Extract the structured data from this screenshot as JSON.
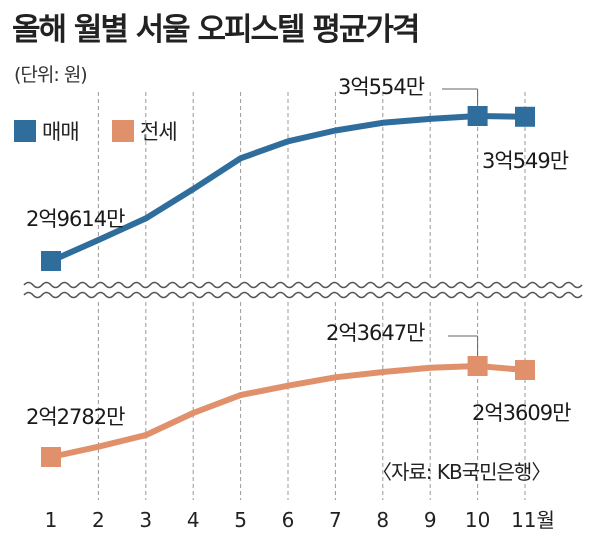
{
  "title": "올해 월별 서울 오피스텔 평균가격",
  "unit_note": "(단위: 원)",
  "source": "〈자료: KB국민은행〉",
  "chart_data": [
    {
      "type": "line",
      "x": [
        1,
        2,
        3,
        4,
        5,
        6,
        7,
        8,
        9,
        10,
        11
      ],
      "tick_labels": [
        "1",
        "2",
        "3",
        "4",
        "5",
        "6",
        "7",
        "8",
        "9",
        "10",
        "11월"
      ],
      "series": [
        {
          "name": "매매",
          "color": "#2f6e9c",
          "values": [
            29614,
            29750,
            29890,
            30080,
            30280,
            30390,
            30460,
            30510,
            30535,
            30554,
            30549
          ],
          "labels": [
            {
              "index": 0,
              "text": "2억9614만"
            },
            {
              "index": 9,
              "text": "3억554만"
            },
            {
              "index": 10,
              "text": "3억549만"
            }
          ]
        },
        {
          "name": "전세",
          "color": "#e0906a",
          "values": [
            22782,
            22880,
            22990,
            23200,
            23370,
            23460,
            23540,
            23590,
            23630,
            23647,
            23609
          ],
          "labels": [
            {
              "index": 0,
              "text": "2억2782만"
            },
            {
              "index": 9,
              "text": "2억3647만"
            },
            {
              "index": 10,
              "text": "2억3609만"
            }
          ]
        }
      ],
      "axis_break": true,
      "legend_position": "top-left",
      "grid": "vertical-dashed"
    }
  ],
  "colors": {
    "sale": "#2f6e9c",
    "jeonse": "#e0906a",
    "grid": "#9a9a9a",
    "text": "#222222"
  }
}
